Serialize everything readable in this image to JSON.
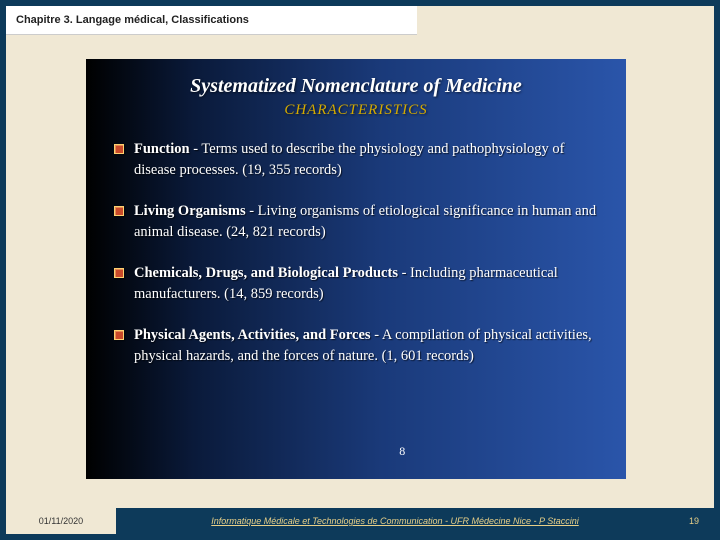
{
  "header": {
    "title": "Chapitre 3. Langage médical, Classifications"
  },
  "slide": {
    "title": "Systematized Nomenclature of Medicine",
    "subtitle": "CHARACTERISTICS",
    "inner_page": "8",
    "bullets": [
      {
        "term": "Function",
        "desc": " - Terms used to describe the physiology and pathophysiology of disease processes. (19, 355 records)"
      },
      {
        "term": "Living Organisms",
        "desc": " - Living organisms of etiological significance in human and animal disease. (24, 821 records)"
      },
      {
        "term": "Chemicals, Drugs, and Biological Products",
        "desc": " - Including pharmaceutical manufacturers. (14, 859 records)"
      },
      {
        "term": "Physical Agents, Activities, and Forces",
        "desc": " - A compilation of physical activities, physical hazards, and the forces of nature. (1, 601 records)"
      }
    ],
    "colors": {
      "bg_gradient_from": "#000000",
      "bg_gradient_to": "#2a55aa",
      "title_color": "#ffffff",
      "subtitle_color": "#d4aa00",
      "text_color": "#ffffff",
      "bullet_fill": "#c94a2a",
      "bullet_border": "#ffd070"
    },
    "typography": {
      "title_fontsize": 20,
      "subtitle_fontsize": 15,
      "body_fontsize": 14.5,
      "font_family": "Georgia, serif",
      "title_style": "italic bold",
      "subtitle_style": "italic"
    }
  },
  "footer": {
    "date": "01/11/2020",
    "center": "Informatique Médicale et Technologies de Communication - UFR Médecine Nice - P Staccini",
    "page": "19"
  },
  "frame": {
    "outer_bg": "#0d3a5a",
    "inner_bg": "#f0e8d4"
  }
}
